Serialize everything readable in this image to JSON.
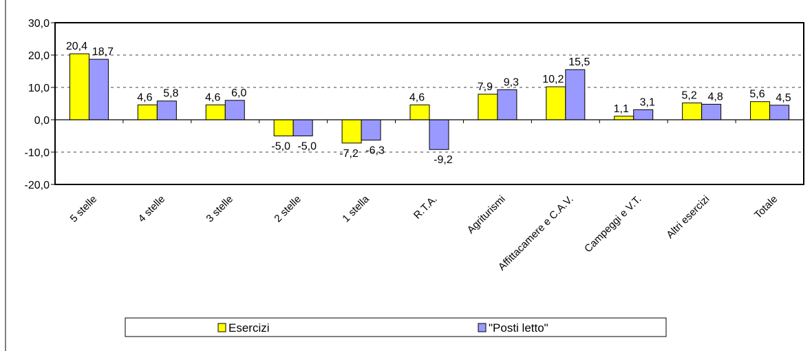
{
  "chart_data": {
    "type": "bar",
    "categories": [
      "5 stelle",
      "4 stelle",
      "3 stelle",
      "2 stelle",
      "1 stella",
      "R.T.A.",
      "Agriturismi",
      "Affittacamere e C.A.V.",
      "Campeggi e V.T.",
      "Altri esercizi",
      "Totale"
    ],
    "series": [
      {
        "name": "Esercizi",
        "color": "#ffff00",
        "values": [
          20.4,
          4.6,
          4.6,
          -5.0,
          -7.2,
          4.6,
          7.9,
          10.2,
          1.1,
          5.2,
          5.6
        ],
        "labels": [
          "20,4",
          "4,6",
          "4,6",
          "-5,0",
          "-7,2",
          "4,6",
          "7,9",
          "10,2",
          "1,1",
          "5,2",
          "5,6"
        ]
      },
      {
        "name": "\"Posti letto\"",
        "color": "#9999ff",
        "values": [
          18.7,
          5.8,
          6.0,
          -5.0,
          -6.3,
          -9.2,
          9.3,
          15.5,
          3.1,
          4.8,
          4.5
        ],
        "labels": [
          "18,7",
          "5,8",
          "6,0",
          "-5,0",
          "-6,3",
          "-9,2",
          "9,3",
          "15,5",
          "3,1",
          "4,8",
          "4,5"
        ]
      }
    ],
    "ylim": [
      -20,
      30
    ],
    "yticks": [
      30,
      20,
      10,
      0,
      -10,
      -20
    ],
    "ytick_labels": [
      "30,0",
      "20,0",
      "10,0",
      "0,0",
      "-10,0",
      "-20,0"
    ],
    "grid": "dashed horizontal",
    "legend": "bottom",
    "title": "",
    "xlabel": "",
    "ylabel": ""
  }
}
